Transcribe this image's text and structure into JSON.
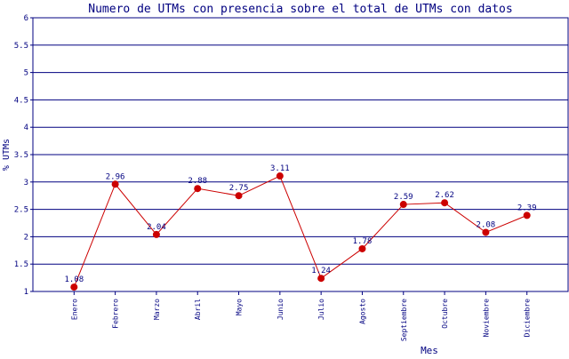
{
  "chart_data": {
    "type": "line",
    "title": "Numero de UTMs con presencia sobre el total de UTMs con datos",
    "xlabel": "Mes",
    "ylabel": "% UTMs",
    "ylim": [
      1,
      6
    ],
    "yticks": [
      "1",
      "1.5",
      "2",
      "2.5",
      "3",
      "3.5",
      "4",
      "4.5",
      "5",
      "5.5",
      "6"
    ],
    "grid": "horizontal",
    "categories": [
      "Enero",
      "Febrero",
      "Marzo",
      "Abril",
      "Mayo",
      "Junio",
      "Julio",
      "Agosto",
      "Septiembre",
      "Octubre",
      "Noviembre",
      "Diciembre"
    ],
    "values": [
      1.08,
      2.96,
      2.04,
      2.88,
      2.75,
      3.11,
      1.24,
      1.78,
      2.59,
      2.62,
      2.08,
      2.39
    ],
    "data_labels": [
      "1.08",
      "2.96",
      "2.04",
      "2.88",
      "2.75",
      "3.11",
      "1.24",
      "1.78",
      "2.59",
      "2.62",
      "2.08",
      "2.39"
    ],
    "colors": {
      "line": "#cc0000",
      "marker": "#cc0000",
      "grid": "#000080",
      "text": "#000080"
    }
  }
}
